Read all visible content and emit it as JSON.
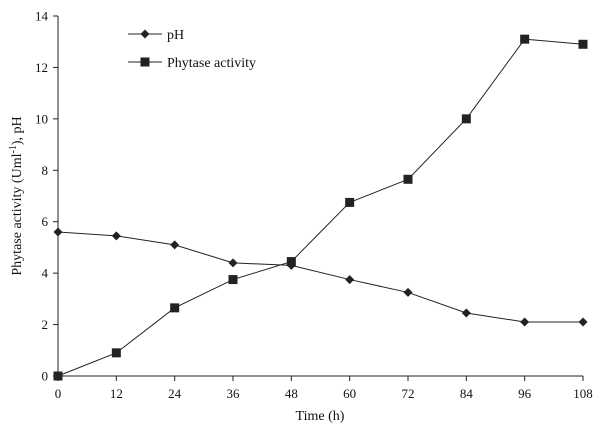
{
  "chart_data": {
    "type": "line",
    "title": "",
    "xlabel": "Time (h)",
    "ylabel": {
      "prefix": "Phytase activity (Uml",
      "superscript": "-1",
      "suffix": "), pH"
    },
    "x": [
      0,
      12,
      24,
      36,
      48,
      60,
      72,
      84,
      96,
      108
    ],
    "xlim": [
      0,
      108
    ],
    "ylim": [
      0,
      14
    ],
    "x_ticks": [
      "0",
      "12",
      "24",
      "36",
      "48",
      "60",
      "72",
      "84",
      "96",
      "108"
    ],
    "y_ticks": [
      "0",
      "2",
      "4",
      "6",
      "8",
      "10",
      "12",
      "14"
    ],
    "grid": false,
    "legend_position": "top-left",
    "series": [
      {
        "name": "pH",
        "marker": "diamond",
        "values": [
          5.6,
          5.45,
          5.1,
          4.4,
          4.3,
          3.75,
          3.25,
          2.45,
          2.1,
          2.1
        ]
      },
      {
        "name": "Phytase activity",
        "marker": "square",
        "values": [
          0.0,
          0.9,
          2.65,
          3.75,
          4.45,
          6.75,
          7.65,
          10.0,
          13.1,
          12.9
        ]
      }
    ],
    "line_color": "#222222"
  }
}
